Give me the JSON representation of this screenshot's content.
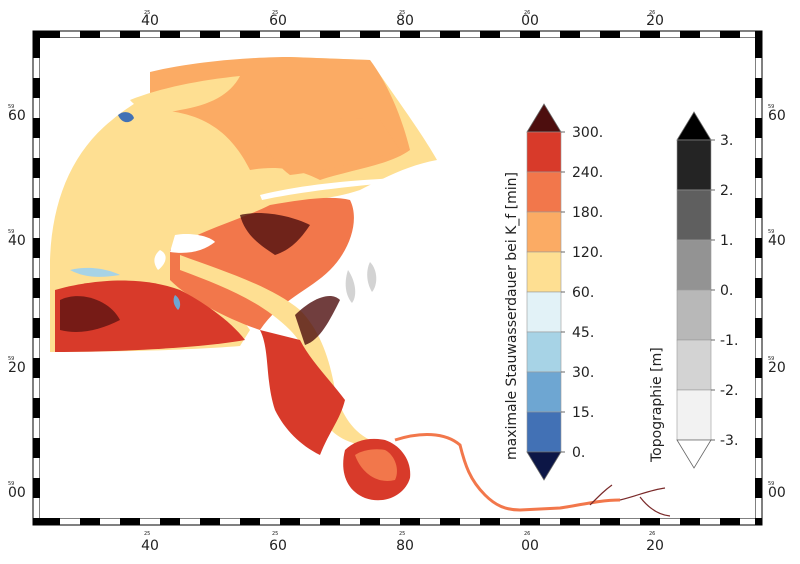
{
  "map": {
    "frame_labels": {
      "x": [
        {
          "deg": "40",
          "sup": "25"
        },
        {
          "deg": "60",
          "sup": "25"
        },
        {
          "deg": "80",
          "sup": "25"
        },
        {
          "deg": "00",
          "sup": "26"
        },
        {
          "deg": "20",
          "sup": "26"
        }
      ],
      "y": [
        {
          "deg": "60",
          "sup": "59"
        },
        {
          "deg": "40",
          "sup": "59"
        },
        {
          "deg": "20",
          "sup": "59"
        },
        {
          "deg": "00",
          "sup": "59"
        }
      ]
    }
  },
  "legend_flood": {
    "title": "maximale Stauwasserdauer bei K_f [min]",
    "labels": [
      "300.",
      "240.",
      "180.",
      "120.",
      "60.",
      "45.",
      "30.",
      "15.",
      "0."
    ],
    "colors": [
      "#d83a2a",
      "#f2774b",
      "#fbab64",
      "#fedf92",
      "#e2f2f7",
      "#a7d3e6",
      "#6ea6d2",
      "#4271b5"
    ],
    "over_color": "#4d0e0e",
    "under_color": "#0c1646"
  },
  "legend_topo": {
    "title": "Topographie [m]",
    "labels": [
      "3.",
      "2.",
      "1.",
      "0.",
      "-1.",
      "-2.",
      "-3."
    ],
    "colors": [
      "#242424",
      "#5f5f5f",
      "#939393",
      "#b8b8b8",
      "#d3d3d3",
      "#f2f2f2"
    ],
    "over_color": "#000000",
    "under_color": "#ffffff"
  }
}
